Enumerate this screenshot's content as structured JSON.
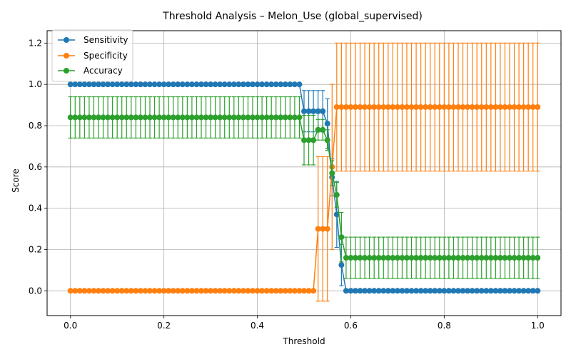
{
  "chart_data": {
    "type": "line",
    "title": "Threshold Analysis – Melon_Use (global_supervised)",
    "xlabel": "Threshold",
    "ylabel": "Score",
    "xlim": [
      -0.05,
      1.05
    ],
    "ylim": [
      -0.12,
      1.26
    ],
    "x_ticks": [
      "0.0",
      "0.2",
      "0.4",
      "0.6",
      "0.8",
      "1.0"
    ],
    "y_ticks": [
      "0.0",
      "0.2",
      "0.4",
      "0.6",
      "0.8",
      "1.0",
      "1.2"
    ],
    "grid": true,
    "legend_position": "top-left",
    "error_bars": true,
    "x": "0.00 to 1.00 step 0.01",
    "series": [
      {
        "name": "Sensitivity",
        "color": "#1f77b4",
        "segments": [
          {
            "from": 0.0,
            "to": 0.49,
            "value": 1.0,
            "err": 0.0
          },
          {
            "from": 0.5,
            "to": 0.54,
            "value": 0.87,
            "err": 0.1
          },
          {
            "points": [
              [
                0.55,
                0.81,
                0.12
              ],
              [
                0.56,
                0.55,
                0.09
              ],
              [
                0.57,
                0.37,
                0.16
              ],
              [
                0.58,
                0.125,
                0.1
              ]
            ]
          },
          {
            "from": 0.59,
            "to": 1.0,
            "value": 0.0,
            "err": 0.0
          }
        ]
      },
      {
        "name": "Specificity",
        "color": "#ff7f0e",
        "segments": [
          {
            "from": 0.0,
            "to": 0.52,
            "value": 0.0,
            "err": 0.0
          },
          {
            "from": 0.53,
            "to": 0.55,
            "value": 0.3,
            "err": 0.35
          },
          {
            "points": [
              [
                0.56,
                0.6,
                0.4
              ]
            ]
          },
          {
            "from": 0.57,
            "to": 1.0,
            "value": 0.89,
            "err": 0.31
          }
        ]
      },
      {
        "name": "Accuracy",
        "color": "#2ca02c",
        "segments": [
          {
            "from": 0.0,
            "to": 0.49,
            "value": 0.84,
            "err": 0.1
          },
          {
            "from": 0.5,
            "to": 0.52,
            "value": 0.73,
            "err": 0.12
          },
          {
            "points": [
              [
                0.53,
                0.78,
                0.05
              ],
              [
                0.54,
                0.78,
                0.05
              ],
              [
                0.55,
                0.73,
                0.05
              ],
              [
                0.56,
                0.57,
                0.06
              ],
              [
                0.57,
                0.465,
                0.06
              ],
              [
                0.58,
                0.26,
                0.12
              ]
            ]
          },
          {
            "from": 0.59,
            "to": 1.0,
            "value": 0.16,
            "err": 0.1
          }
        ]
      }
    ]
  }
}
